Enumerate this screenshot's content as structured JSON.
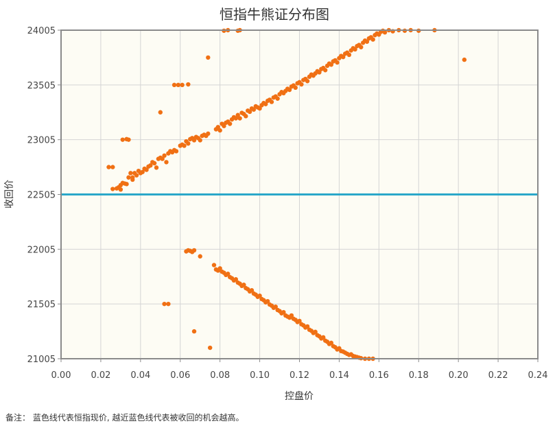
{
  "chart_data": {
    "type": "scatter",
    "title": "恒指牛熊证分布图",
    "xlabel": "控盘价",
    "ylabel": "收回价",
    "xlim": [
      0.0,
      0.24
    ],
    "ylim": [
      21005,
      24005
    ],
    "x_ticks": [
      "0.00",
      "0.02",
      "0.04",
      "0.06",
      "0.08",
      "0.10",
      "0.12",
      "0.14",
      "0.16",
      "0.18",
      "0.20",
      "0.22",
      "0.24"
    ],
    "y_ticks": [
      "21005",
      "21505",
      "22005",
      "22505",
      "23005",
      "23505",
      "24005"
    ],
    "grid": true,
    "reference_line": {
      "y": 22505,
      "color": "#2aa7c9"
    },
    "point_color": "#f07014",
    "plot_background": "#fdfcf4",
    "points": [
      [
        0.024,
        22755
      ],
      [
        0.026,
        22755
      ],
      [
        0.026,
        22555
      ],
      [
        0.028,
        22560
      ],
      [
        0.029,
        22570
      ],
      [
        0.03,
        22590
      ],
      [
        0.031,
        22610
      ],
      [
        0.032,
        22605
      ],
      [
        0.033,
        22600
      ],
      [
        0.031,
        23005
      ],
      [
        0.033,
        23010
      ],
      [
        0.034,
        23005
      ],
      [
        0.03,
        22550
      ],
      [
        0.034,
        22660
      ],
      [
        0.035,
        22700
      ],
      [
        0.036,
        22660
      ],
      [
        0.036,
        22640
      ],
      [
        0.037,
        22700
      ],
      [
        0.038,
        22680
      ],
      [
        0.039,
        22720
      ],
      [
        0.04,
        22700
      ],
      [
        0.041,
        22710
      ],
      [
        0.042,
        22740
      ],
      [
        0.043,
        22730
      ],
      [
        0.044,
        22760
      ],
      [
        0.045,
        22770
      ],
      [
        0.046,
        22800
      ],
      [
        0.047,
        22790
      ],
      [
        0.048,
        22750
      ],
      [
        0.049,
        22830
      ],
      [
        0.05,
        22840
      ],
      [
        0.051,
        22830
      ],
      [
        0.052,
        22860
      ],
      [
        0.053,
        22800
      ],
      [
        0.054,
        22880
      ],
      [
        0.055,
        22900
      ],
      [
        0.056,
        22890
      ],
      [
        0.057,
        22910
      ],
      [
        0.058,
        22900
      ],
      [
        0.06,
        22950
      ],
      [
        0.061,
        22960
      ],
      [
        0.062,
        22950
      ],
      [
        0.063,
        22990
      ],
      [
        0.064,
        22970
      ],
      [
        0.065,
        23010
      ],
      [
        0.066,
        23020
      ],
      [
        0.067,
        23000
      ],
      [
        0.068,
        23030
      ],
      [
        0.069,
        23020
      ],
      [
        0.07,
        23000
      ],
      [
        0.071,
        23040
      ],
      [
        0.072,
        23050
      ],
      [
        0.073,
        23040
      ],
      [
        0.074,
        23060
      ],
      [
        0.057,
        23505
      ],
      [
        0.059,
        23505
      ],
      [
        0.061,
        23505
      ],
      [
        0.064,
        23510
      ],
      [
        0.05,
        23255
      ],
      [
        0.074,
        23755
      ],
      [
        0.078,
        23100
      ],
      [
        0.079,
        23120
      ],
      [
        0.08,
        23090
      ],
      [
        0.081,
        23150
      ],
      [
        0.082,
        23130
      ],
      [
        0.083,
        23160
      ],
      [
        0.084,
        23170
      ],
      [
        0.085,
        23150
      ],
      [
        0.086,
        23190
      ],
      [
        0.087,
        23210
      ],
      [
        0.088,
        23200
      ],
      [
        0.089,
        23230
      ],
      [
        0.09,
        23200
      ],
      [
        0.091,
        23250
      ],
      [
        0.092,
        23240
      ],
      [
        0.093,
        23220
      ],
      [
        0.094,
        23270
      ],
      [
        0.095,
        23260
      ],
      [
        0.096,
        23290
      ],
      [
        0.097,
        23280
      ],
      [
        0.098,
        23310
      ],
      [
        0.099,
        23300
      ],
      [
        0.1,
        23290
      ],
      [
        0.101,
        23320
      ],
      [
        0.102,
        23340
      ],
      [
        0.103,
        23330
      ],
      [
        0.104,
        23360
      ],
      [
        0.105,
        23370
      ],
      [
        0.106,
        23350
      ],
      [
        0.107,
        23390
      ],
      [
        0.108,
        23400
      ],
      [
        0.109,
        23380
      ],
      [
        0.11,
        23420
      ],
      [
        0.111,
        23440
      ],
      [
        0.112,
        23430
      ],
      [
        0.113,
        23450
      ],
      [
        0.114,
        23470
      ],
      [
        0.115,
        23460
      ],
      [
        0.116,
        23490
      ],
      [
        0.117,
        23500
      ],
      [
        0.118,
        23480
      ],
      [
        0.119,
        23520
      ],
      [
        0.12,
        23530
      ],
      [
        0.121,
        23510
      ],
      [
        0.122,
        23550
      ],
      [
        0.123,
        23560
      ],
      [
        0.124,
        23540
      ],
      [
        0.125,
        23580
      ],
      [
        0.126,
        23600
      ],
      [
        0.127,
        23590
      ],
      [
        0.128,
        23610
      ],
      [
        0.129,
        23630
      ],
      [
        0.13,
        23620
      ],
      [
        0.131,
        23650
      ],
      [
        0.132,
        23660
      ],
      [
        0.133,
        23640
      ],
      [
        0.134,
        23680
      ],
      [
        0.135,
        23700
      ],
      [
        0.136,
        23690
      ],
      [
        0.137,
        23720
      ],
      [
        0.138,
        23730
      ],
      [
        0.139,
        23710
      ],
      [
        0.14,
        23750
      ],
      [
        0.141,
        23770
      ],
      [
        0.142,
        23760
      ],
      [
        0.143,
        23790
      ],
      [
        0.144,
        23800
      ],
      [
        0.145,
        23780
      ],
      [
        0.146,
        23820
      ],
      [
        0.147,
        23840
      ],
      [
        0.148,
        23830
      ],
      [
        0.149,
        23860
      ],
      [
        0.15,
        23870
      ],
      [
        0.151,
        23850
      ],
      [
        0.152,
        23890
      ],
      [
        0.153,
        23910
      ],
      [
        0.154,
        23900
      ],
      [
        0.155,
        23930
      ],
      [
        0.156,
        23940
      ],
      [
        0.157,
        23920
      ],
      [
        0.158,
        23960
      ],
      [
        0.159,
        23975
      ],
      [
        0.16,
        23965
      ],
      [
        0.161,
        23990
      ],
      [
        0.162,
        24000
      ],
      [
        0.163,
        23985
      ],
      [
        0.165,
        24005
      ],
      [
        0.167,
        23995
      ],
      [
        0.17,
        24005
      ],
      [
        0.173,
        24000
      ],
      [
        0.176,
        24005
      ],
      [
        0.18,
        24000
      ],
      [
        0.188,
        24005
      ],
      [
        0.203,
        23735
      ],
      [
        0.082,
        24000
      ],
      [
        0.084,
        24005
      ],
      [
        0.089,
        24000
      ],
      [
        0.09,
        24005
      ],
      [
        0.063,
        21985
      ],
      [
        0.064,
        21995
      ],
      [
        0.065,
        21990
      ],
      [
        0.066,
        21980
      ],
      [
        0.067,
        21995
      ],
      [
        0.07,
        21940
      ],
      [
        0.077,
        21860
      ],
      [
        0.078,
        21820
      ],
      [
        0.079,
        21810
      ],
      [
        0.08,
        21830
      ],
      [
        0.081,
        21800
      ],
      [
        0.082,
        21790
      ],
      [
        0.083,
        21770
      ],
      [
        0.084,
        21780
      ],
      [
        0.085,
        21750
      ],
      [
        0.086,
        21740
      ],
      [
        0.087,
        21720
      ],
      [
        0.088,
        21730
      ],
      [
        0.089,
        21700
      ],
      [
        0.09,
        21690
      ],
      [
        0.091,
        21670
      ],
      [
        0.092,
        21680
      ],
      [
        0.093,
        21650
      ],
      [
        0.094,
        21640
      ],
      [
        0.095,
        21620
      ],
      [
        0.096,
        21630
      ],
      [
        0.097,
        21600
      ],
      [
        0.098,
        21590
      ],
      [
        0.099,
        21570
      ],
      [
        0.1,
        21580
      ],
      [
        0.101,
        21550
      ],
      [
        0.102,
        21540
      ],
      [
        0.103,
        21520
      ],
      [
        0.104,
        21530
      ],
      [
        0.105,
        21500
      ],
      [
        0.106,
        21490
      ],
      [
        0.107,
        21470
      ],
      [
        0.108,
        21480
      ],
      [
        0.109,
        21450
      ],
      [
        0.11,
        21440
      ],
      [
        0.111,
        21420
      ],
      [
        0.112,
        21430
      ],
      [
        0.113,
        21400
      ],
      [
        0.114,
        21390
      ],
      [
        0.115,
        21380
      ],
      [
        0.116,
        21400
      ],
      [
        0.117,
        21370
      ],
      [
        0.118,
        21360
      ],
      [
        0.119,
        21340
      ],
      [
        0.12,
        21350
      ],
      [
        0.121,
        21320
      ],
      [
        0.122,
        21310
      ],
      [
        0.123,
        21290
      ],
      [
        0.124,
        21300
      ],
      [
        0.125,
        21270
      ],
      [
        0.126,
        21260
      ],
      [
        0.127,
        21240
      ],
      [
        0.128,
        21250
      ],
      [
        0.129,
        21220
      ],
      [
        0.13,
        21210
      ],
      [
        0.131,
        21190
      ],
      [
        0.132,
        21200
      ],
      [
        0.133,
        21170
      ],
      [
        0.134,
        21160
      ],
      [
        0.135,
        21140
      ],
      [
        0.136,
        21150
      ],
      [
        0.137,
        21120
      ],
      [
        0.138,
        21110
      ],
      [
        0.139,
        21090
      ],
      [
        0.14,
        21100
      ],
      [
        0.141,
        21075
      ],
      [
        0.142,
        21070
      ],
      [
        0.143,
        21060
      ],
      [
        0.144,
        21050
      ],
      [
        0.145,
        21040
      ],
      [
        0.146,
        21045
      ],
      [
        0.147,
        21030
      ],
      [
        0.148,
        21025
      ],
      [
        0.149,
        21020
      ],
      [
        0.15,
        21015
      ],
      [
        0.151,
        21010
      ],
      [
        0.153,
        21005
      ],
      [
        0.155,
        21005
      ],
      [
        0.157,
        21005
      ],
      [
        0.052,
        21505
      ],
      [
        0.054,
        21505
      ],
      [
        0.067,
        21255
      ],
      [
        0.075,
        21105
      ]
    ]
  },
  "footnote": "备注：  蓝色线代表恒指现价, 越近蓝色线代表被收回的机会越高。"
}
